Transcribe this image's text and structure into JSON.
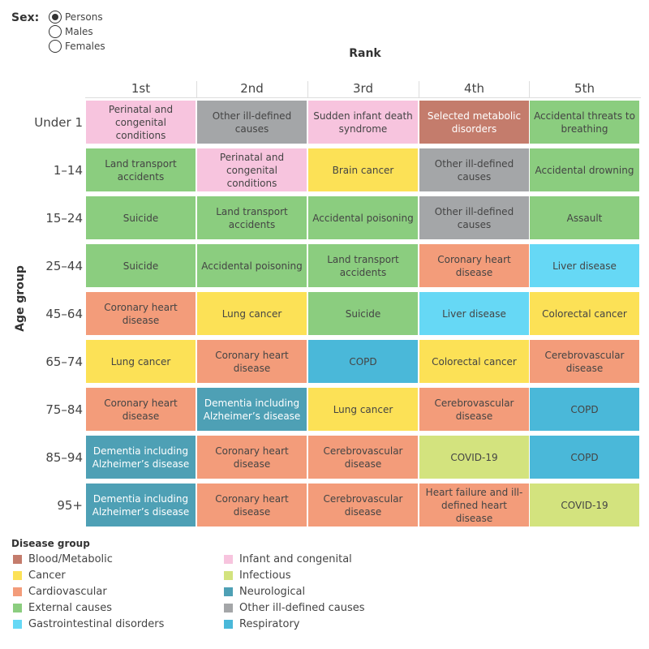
{
  "sex_filter": {
    "label": "Sex:",
    "options": [
      "Persons",
      "Males",
      "Females"
    ],
    "selected": "Persons"
  },
  "chart_data": {
    "type": "table",
    "title": "Rank",
    "ylabel": "Age group",
    "columns": [
      "1st",
      "2nd",
      "3rd",
      "4th",
      "5th"
    ],
    "rows": [
      {
        "age": "Under 1",
        "cells": [
          {
            "text": "Perinatal and congenital conditions",
            "group": "Infant and congenital"
          },
          {
            "text": "Other ill-defined causes",
            "group": "Other ill-defined causes"
          },
          {
            "text": "Sudden infant death syndrome",
            "group": "Infant and congenital"
          },
          {
            "text": "Selected metabolic disorders",
            "group": "Blood/Metabolic"
          },
          {
            "text": "Accidental threats to breathing",
            "group": "External causes"
          }
        ]
      },
      {
        "age": "1–14",
        "cells": [
          {
            "text": "Land transport accidents",
            "group": "External causes"
          },
          {
            "text": "Perinatal and congenital conditions",
            "group": "Infant and congenital"
          },
          {
            "text": "Brain cancer",
            "group": "Cancer"
          },
          {
            "text": "Other ill-defined causes",
            "group": "Other ill-defined causes"
          },
          {
            "text": "Accidental drowning",
            "group": "External causes"
          }
        ]
      },
      {
        "age": "15–24",
        "cells": [
          {
            "text": "Suicide",
            "group": "External causes"
          },
          {
            "text": "Land transport accidents",
            "group": "External causes"
          },
          {
            "text": "Accidental poisoning",
            "group": "External causes"
          },
          {
            "text": "Other ill-defined causes",
            "group": "Other ill-defined causes"
          },
          {
            "text": "Assault",
            "group": "External causes"
          }
        ]
      },
      {
        "age": "25–44",
        "cells": [
          {
            "text": "Suicide",
            "group": "External causes"
          },
          {
            "text": "Accidental poisoning",
            "group": "External causes"
          },
          {
            "text": "Land transport accidents",
            "group": "External causes"
          },
          {
            "text": "Coronary heart disease",
            "group": "Cardiovascular"
          },
          {
            "text": "Liver disease",
            "group": "Gastrointestinal disorders"
          }
        ]
      },
      {
        "age": "45–64",
        "cells": [
          {
            "text": "Coronary heart disease",
            "group": "Cardiovascular"
          },
          {
            "text": "Lung cancer",
            "group": "Cancer"
          },
          {
            "text": "Suicide",
            "group": "External causes"
          },
          {
            "text": "Liver disease",
            "group": "Gastrointestinal disorders"
          },
          {
            "text": "Colorectal cancer",
            "group": "Cancer"
          }
        ]
      },
      {
        "age": "65–74",
        "cells": [
          {
            "text": "Lung cancer",
            "group": "Cancer"
          },
          {
            "text": "Coronary heart disease",
            "group": "Cardiovascular"
          },
          {
            "text": "COPD",
            "group": "Respiratory"
          },
          {
            "text": "Colorectal cancer",
            "group": "Cancer"
          },
          {
            "text": "Cerebrovascular disease",
            "group": "Cardiovascular"
          }
        ]
      },
      {
        "age": "75–84",
        "cells": [
          {
            "text": "Coronary heart disease",
            "group": "Cardiovascular"
          },
          {
            "text": "Dementia including Alzheimer’s disease",
            "group": "Neurological"
          },
          {
            "text": "Lung cancer",
            "group": "Cancer"
          },
          {
            "text": "Cerebrovascular disease",
            "group": "Cardiovascular"
          },
          {
            "text": "COPD",
            "group": "Respiratory"
          }
        ]
      },
      {
        "age": "85–94",
        "cells": [
          {
            "text": "Dementia including Alzheimer’s disease",
            "group": "Neurological"
          },
          {
            "text": "Coronary heart disease",
            "group": "Cardiovascular"
          },
          {
            "text": "Cerebrovascular disease",
            "group": "Cardiovascular"
          },
          {
            "text": "COVID-19",
            "group": "Infectious"
          },
          {
            "text": "COPD",
            "group": "Respiratory"
          }
        ]
      },
      {
        "age": "95+",
        "cells": [
          {
            "text": "Dementia including Alzheimer’s disease",
            "group": "Neurological"
          },
          {
            "text": "Coronary heart disease",
            "group": "Cardiovascular"
          },
          {
            "text": "Cerebrovascular disease",
            "group": "Cardiovascular"
          },
          {
            "text": "Heart failure and ill-defined heart disease",
            "group": "Cardiovascular"
          },
          {
            "text": "COVID-19",
            "group": "Infectious"
          }
        ]
      }
    ],
    "legend": {
      "title": "Disease group",
      "items": [
        {
          "name": "Blood/Metabolic",
          "color": "#c47c6c"
        },
        {
          "name": "Cancer",
          "color": "#fce156"
        },
        {
          "name": "Cardiovascular",
          "color": "#f39c7a"
        },
        {
          "name": "External causes",
          "color": "#8bcd7f"
        },
        {
          "name": "Gastrointestinal disorders",
          "color": "#66d8f5"
        },
        {
          "name": "Infant and congenital",
          "color": "#f7c4de"
        },
        {
          "name": "Infectious",
          "color": "#d3e37e"
        },
        {
          "name": "Neurological",
          "color": "#4ea0b5"
        },
        {
          "name": "Other ill-defined causes",
          "color": "#a4a6a8"
        },
        {
          "name": "Respiratory",
          "color": "#4ab8d9"
        }
      ]
    },
    "text_colors": {
      "dark": "#444444",
      "light": "#ffffff"
    },
    "light_text_groups": [
      "Blood/Metabolic",
      "Neurological"
    ]
  }
}
